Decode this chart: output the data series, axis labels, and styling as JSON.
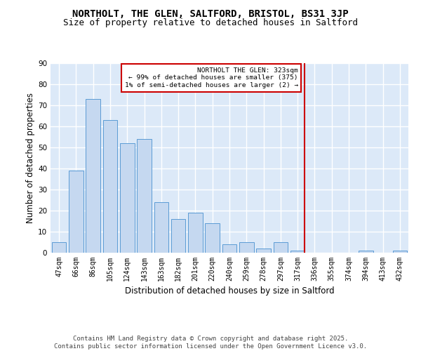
{
  "title_line1": "NORTHOLT, THE GLEN, SALTFORD, BRISTOL, BS31 3JP",
  "title_line2": "Size of property relative to detached houses in Saltford",
  "xlabel": "Distribution of detached houses by size in Saltford",
  "ylabel": "Number of detached properties",
  "categories": [
    "47sqm",
    "66sqm",
    "86sqm",
    "105sqm",
    "124sqm",
    "143sqm",
    "163sqm",
    "182sqm",
    "201sqm",
    "220sqm",
    "240sqm",
    "259sqm",
    "278sqm",
    "297sqm",
    "317sqm",
    "336sqm",
    "355sqm",
    "374sqm",
    "394sqm",
    "413sqm",
    "432sqm"
  ],
  "values": [
    5,
    39,
    73,
    63,
    52,
    54,
    24,
    16,
    19,
    14,
    4,
    5,
    2,
    5,
    1,
    0,
    0,
    0,
    1,
    0,
    1
  ],
  "bar_color": "#c5d8f0",
  "bar_edge_color": "#5b9bd5",
  "background_color": "#dce9f8",
  "grid_color": "#ffffff",
  "annotation_text": "NORTHOLT THE GLEN: 323sqm\n← 99% of detached houses are smaller (375)\n1% of semi-detached houses are larger (2) →",
  "vline_x_index": 14,
  "vline_color": "#cc0000",
  "annotation_box_color": "#cc0000",
  "ylim": [
    0,
    90
  ],
  "yticks": [
    0,
    10,
    20,
    30,
    40,
    50,
    60,
    70,
    80,
    90
  ],
  "footer_text": "Contains HM Land Registry data © Crown copyright and database right 2025.\nContains public sector information licensed under the Open Government Licence v3.0.",
  "title_fontsize": 10,
  "subtitle_fontsize": 9,
  "tick_fontsize": 7,
  "label_fontsize": 8.5,
  "footer_fontsize": 6.5
}
